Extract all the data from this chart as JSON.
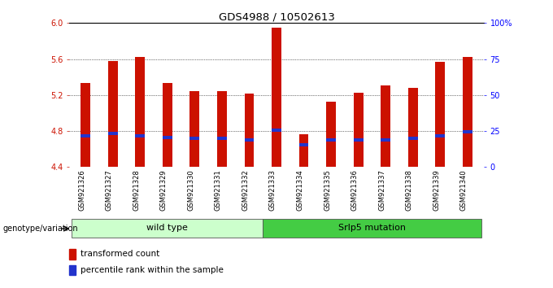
{
  "title": "GDS4988 / 10502613",
  "samples": [
    "GSM921326",
    "GSM921327",
    "GSM921328",
    "GSM921329",
    "GSM921330",
    "GSM921331",
    "GSM921332",
    "GSM921333",
    "GSM921334",
    "GSM921335",
    "GSM921336",
    "GSM921337",
    "GSM921338",
    "GSM921339",
    "GSM921340"
  ],
  "red_values": [
    5.33,
    5.58,
    5.62,
    5.33,
    5.24,
    5.24,
    5.22,
    5.95,
    4.76,
    5.13,
    5.23,
    5.31,
    5.28,
    5.57,
    5.62
  ],
  "blue_values": [
    4.75,
    4.77,
    4.75,
    4.73,
    4.72,
    4.72,
    4.7,
    4.81,
    4.65,
    4.7,
    4.7,
    4.7,
    4.72,
    4.75,
    4.79
  ],
  "ymin": 4.4,
  "ymax": 6.0,
  "yticks": [
    4.4,
    4.8,
    5.2,
    5.6,
    6.0
  ],
  "group1_label": "wild type",
  "group2_label": "Srlp5 mutation",
  "group1_count": 7,
  "bar_color": "#cc1100",
  "blue_color": "#2233cc",
  "group1_bg": "#ccffcc",
  "group2_bg": "#44cc44",
  "legend_red": "transformed count",
  "legend_blue": "percentile rank within the sample",
  "bar_width": 0.35,
  "right_labels": [
    "0",
    "25",
    "50",
    "75",
    "100%"
  ],
  "right_positions": [
    4.4,
    4.8,
    5.2,
    5.6,
    6.0
  ]
}
